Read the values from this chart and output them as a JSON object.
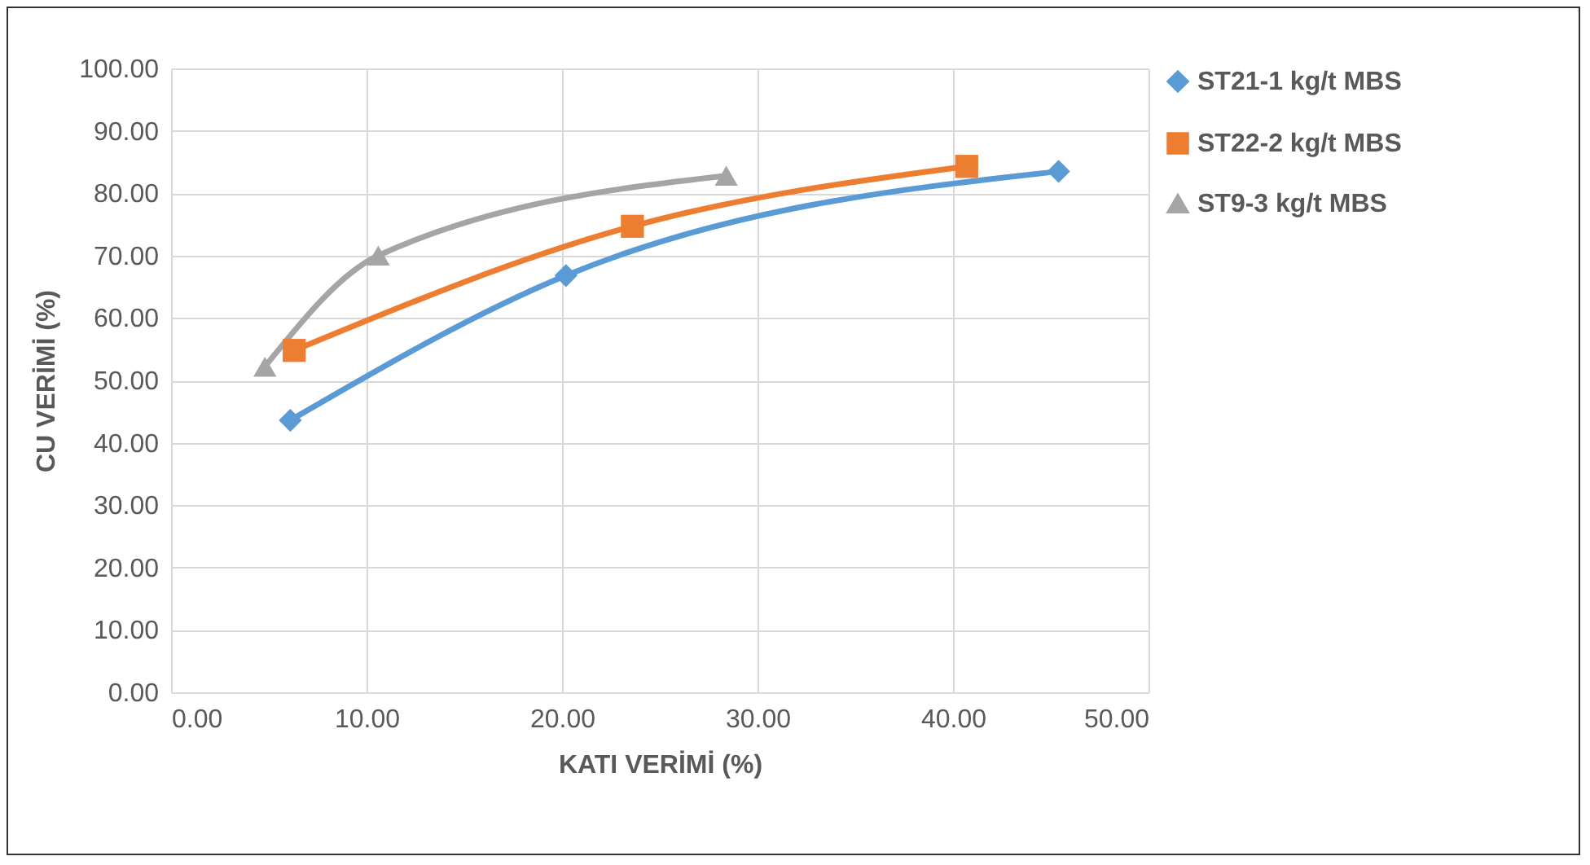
{
  "chart_data": {
    "type": "line",
    "xlabel": "KATI VERİMİ (%)",
    "ylabel": "CU VERİMİ (%)",
    "grid": true,
    "legend": "right",
    "line_style": "solid",
    "xlim": [
      0,
      50
    ],
    "xticks": [
      {
        "value": 0,
        "label": "0.00"
      },
      {
        "value": 10,
        "label": "10.00"
      },
      {
        "value": 20,
        "label": "20.00"
      },
      {
        "value": 30,
        "label": "30.00"
      },
      {
        "value": 40,
        "label": "40.00"
      },
      {
        "value": 50,
        "label": "50.00"
      }
    ],
    "ylim": [
      0,
      100
    ],
    "yticks": [
      {
        "value": 0,
        "label": "0.00"
      },
      {
        "value": 10,
        "label": "10.00"
      },
      {
        "value": 20,
        "label": "20.00"
      },
      {
        "value": 30,
        "label": "30.00"
      },
      {
        "value": 40,
        "label": "40.00"
      },
      {
        "value": 50,
        "label": "50.00"
      },
      {
        "value": 60,
        "label": "60.00"
      },
      {
        "value": 70,
        "label": "70.00"
      },
      {
        "value": 80,
        "label": "80.00"
      },
      {
        "value": 90,
        "label": "90.00"
      },
      {
        "value": 100,
        "label": "100.00"
      }
    ],
    "series": [
      {
        "name": "ST21-1 kg/t MBS",
        "color": "#5b9bd5",
        "marker": "diamond",
        "x": [
          6.1,
          20.2,
          45.4
        ],
        "values": [
          43.6,
          66.8,
          83.5
        ]
      },
      {
        "name": "ST22-2 kg/t MBS",
        "color": "#ed7d31",
        "marker": "square",
        "x": [
          6.3,
          23.6,
          40.7
        ],
        "values": [
          54.8,
          74.7,
          84.3
        ]
      },
      {
        "name": "ST9-3 kg/t MBS",
        "color": "#a5a5a5",
        "marker": "triangle",
        "x": [
          4.8,
          10.6,
          28.4
        ],
        "values": [
          52.2,
          70.0,
          82.8
        ]
      }
    ]
  }
}
